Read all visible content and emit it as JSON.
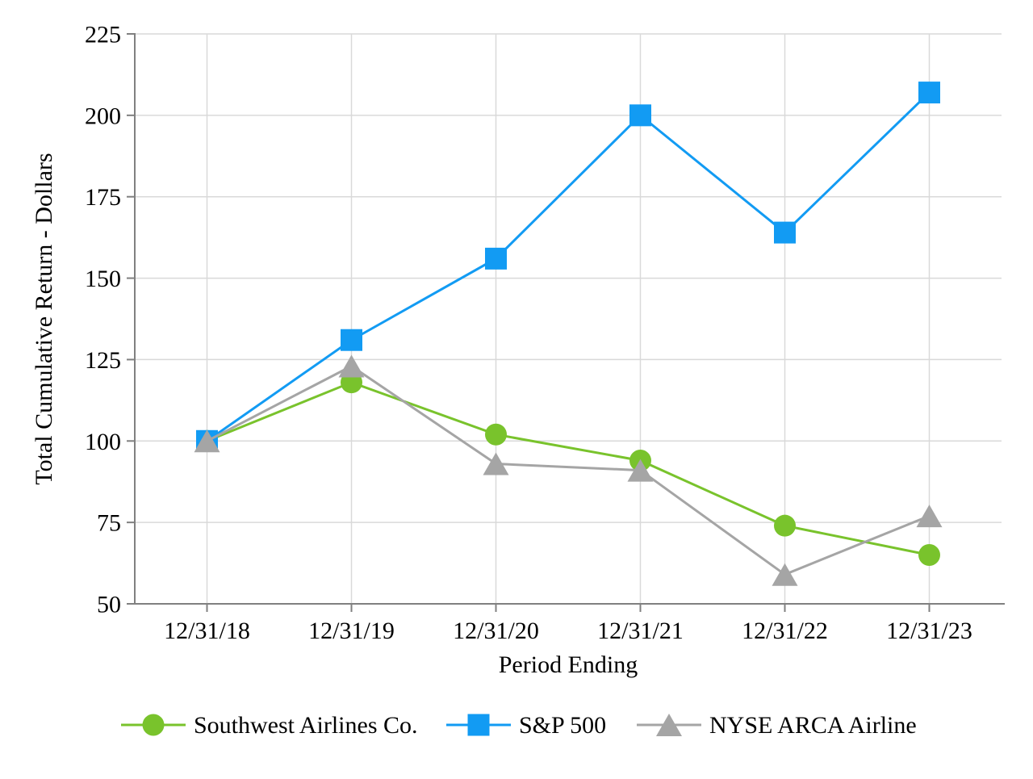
{
  "chart_data": {
    "type": "line",
    "title": "",
    "xlabel": "Period Ending",
    "ylabel": "Total Cumulative Return - Dollars",
    "categories": [
      "12/31/18",
      "12/31/19",
      "12/31/20",
      "12/31/21",
      "12/31/22",
      "12/31/23"
    ],
    "series": [
      {
        "name": "Southwest Airlines Co.",
        "marker": "circle",
        "color": "#79C32C",
        "values": [
          100,
          118,
          102,
          94,
          74,
          65
        ]
      },
      {
        "name": "S&P 500",
        "marker": "square",
        "color": "#129BF3",
        "values": [
          100,
          131,
          156,
          200,
          164,
          207
        ]
      },
      {
        "name": "NYSE ARCA Airline",
        "marker": "triangle",
        "color": "#A5A5A5",
        "values": [
          100,
          123,
          93,
          91,
          59,
          77
        ]
      }
    ],
    "ylim": [
      50,
      225
    ],
    "ytick_step": 25,
    "grid": true,
    "legend_position": "bottom"
  },
  "style": {
    "axis_color": "#808080",
    "grid_color": "#D9D9D9",
    "text_color": "#000000",
    "background": "#FFFFFF"
  }
}
